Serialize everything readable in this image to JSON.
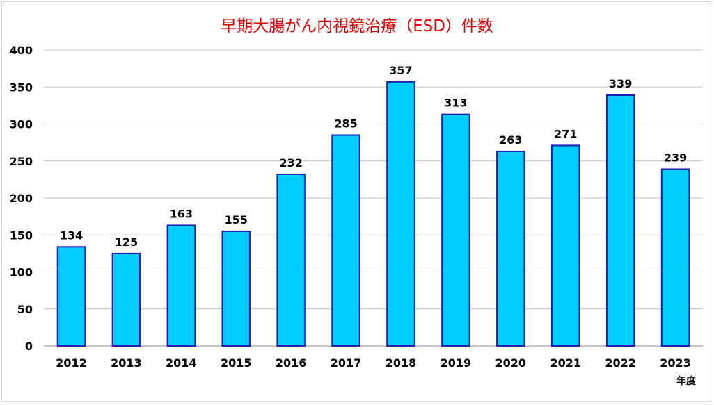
{
  "chart_data": {
    "type": "bar",
    "title": "早期大腸がん内視鏡治療（ESD）件数",
    "xlabel": "年度",
    "ylabel": "",
    "categories": [
      "2012",
      "2013",
      "2014",
      "2015",
      "2016",
      "2017",
      "2018",
      "2019",
      "2020",
      "2021",
      "2022",
      "2023"
    ],
    "values": [
      134,
      125,
      163,
      155,
      232,
      285,
      357,
      313,
      263,
      271,
      339,
      239
    ],
    "ylim": [
      0,
      400
    ],
    "yticks": [
      0,
      50,
      100,
      150,
      200,
      250,
      300,
      350,
      400
    ],
    "grid": true,
    "data_labels": true,
    "colors": {
      "bar_fill": "#00ccff",
      "bar_stroke": "#1f1fb8",
      "title": "#e00000",
      "grid": "#bfbfbf"
    }
  }
}
